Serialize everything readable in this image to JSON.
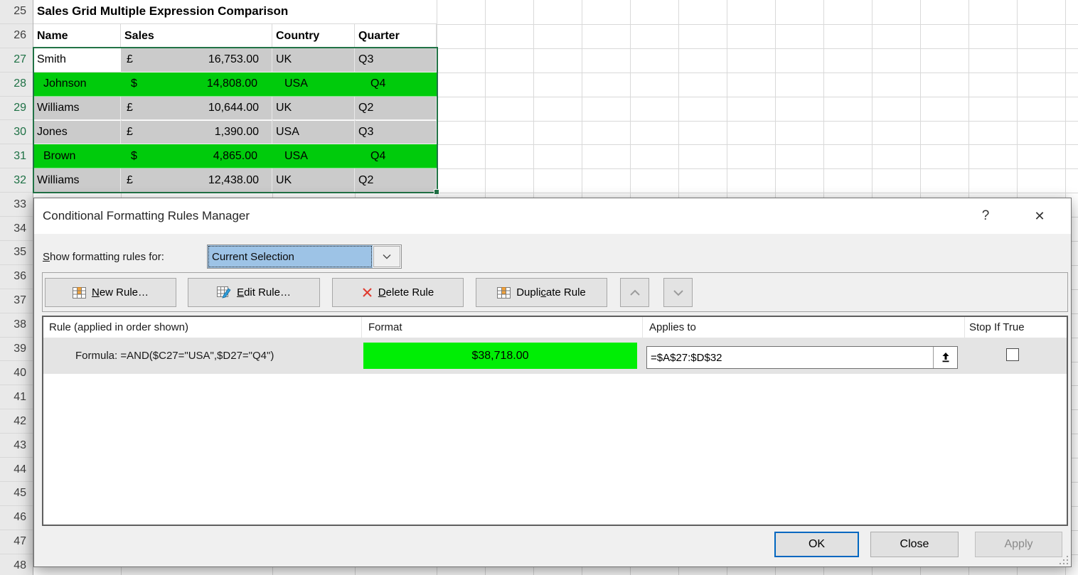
{
  "sheet": {
    "title": "Sales Grid Multiple Expression Comparison",
    "columns": [
      "Name",
      "Sales",
      "Country",
      "Quarter"
    ],
    "rows": [
      {
        "row": 27,
        "name": "Smith",
        "currency": "£",
        "amount": "16,753.00",
        "country": "UK",
        "quarter": "Q3",
        "highlight": false
      },
      {
        "row": 28,
        "name": "Johnson",
        "currency": "$",
        "amount": "14,808.00",
        "country": "USA",
        "quarter": "Q4",
        "highlight": true
      },
      {
        "row": 29,
        "name": "Williams",
        "currency": "£",
        "amount": "10,644.00",
        "country": "UK",
        "quarter": "Q2",
        "highlight": false
      },
      {
        "row": 30,
        "name": "Jones",
        "currency": "£",
        "amount": "1,390.00",
        "country": "USA",
        "quarter": "Q3",
        "highlight": false
      },
      {
        "row": 31,
        "name": "Brown",
        "currency": "$",
        "amount": "4,865.00",
        "country": "USA",
        "quarter": "Q4",
        "highlight": true
      },
      {
        "row": 32,
        "name": "Williams",
        "currency": "£",
        "amount": "12,438.00",
        "country": "UK",
        "quarter": "Q2",
        "highlight": false
      }
    ],
    "row_numbers_start": 25,
    "row_numbers_end": 48,
    "selected_rows_start": 27,
    "selected_rows_end": 32,
    "colors": {
      "highlight_green": "#00cb0c",
      "selection_gray": "#cbcbcb",
      "selected_row_number_green": "#1e7145",
      "selection_border_green": "#217346"
    }
  },
  "dialog": {
    "title": "Conditional Formatting Rules Manager",
    "help_glyph": "?",
    "close_glyph": "✕",
    "show_rules_label": "Show formatting rules for:",
    "show_rules_accesskey": "S",
    "show_rules_value": "Current Selection",
    "toolbar": {
      "new_rule": {
        "label": "New Rule…",
        "key": "N"
      },
      "edit_rule": {
        "label": "Edit Rule…",
        "key": "E"
      },
      "delete_rule": {
        "label": "Delete Rule",
        "key": "D"
      },
      "duplicate_rule": {
        "label": "Duplicate Rule",
        "key": "c"
      }
    },
    "list": {
      "headers": [
        "Rule (applied in order shown)",
        "Format",
        "Applies to",
        "Stop If True"
      ],
      "rules": [
        {
          "rule": "Formula: =AND($C27=\"USA\",$D27=\"Q4\")",
          "format_preview": "$38,718.00",
          "applies_to": "=$A$27:$D$32",
          "stop_if_true": false
        }
      ]
    },
    "buttons": {
      "ok": "OK",
      "close": "Close",
      "apply": "Apply"
    },
    "colors": {
      "preview_green": "#00ee05",
      "combo_highlight_blue": "#9dc3e6",
      "ok_focus_border": "#0067c0"
    }
  }
}
